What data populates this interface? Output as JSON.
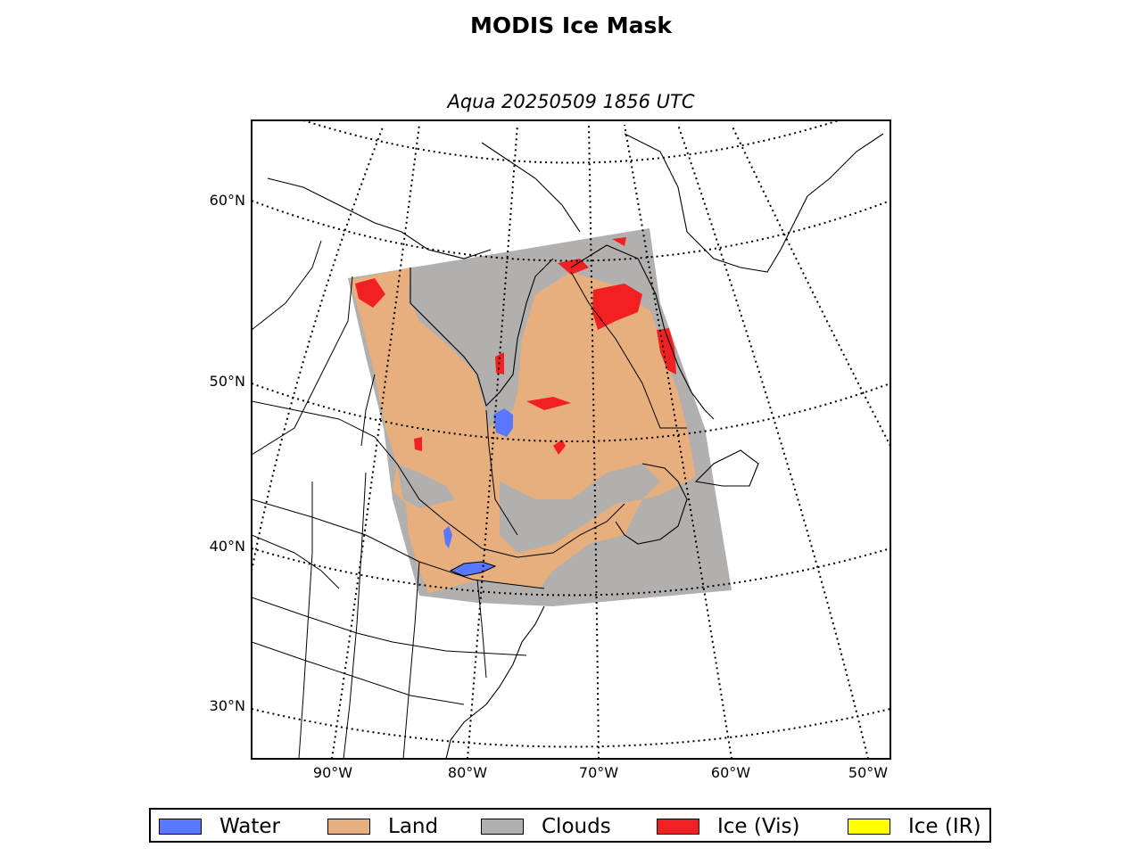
{
  "title": "MODIS Ice Mask",
  "subtitle": "Aqua 20250509 1856 UTC",
  "lat_labels": [
    "60°N",
    "50°N",
    "40°N",
    "30°N"
  ],
  "lon_labels": [
    "90°W",
    "80°W",
    "70°W",
    "60°W",
    "50°W"
  ],
  "legend": [
    {
      "label": "Water",
      "color": "#5a78ff"
    },
    {
      "label": "Land",
      "color": "#e6af7d"
    },
    {
      "label": "Clouds",
      "color": "#b2afaf"
    },
    {
      "label": "Ice (Vis)",
      "color": "#f22020"
    },
    {
      "label": "Ice (IR)",
      "color": "#ffff00"
    }
  ],
  "colors": {
    "water": "#5a78ff",
    "land": "#e6af7d",
    "clouds": "#b2afaf",
    "ice_vis": "#f22020",
    "ice_ir": "#ffff00",
    "graticule": "#000000"
  }
}
